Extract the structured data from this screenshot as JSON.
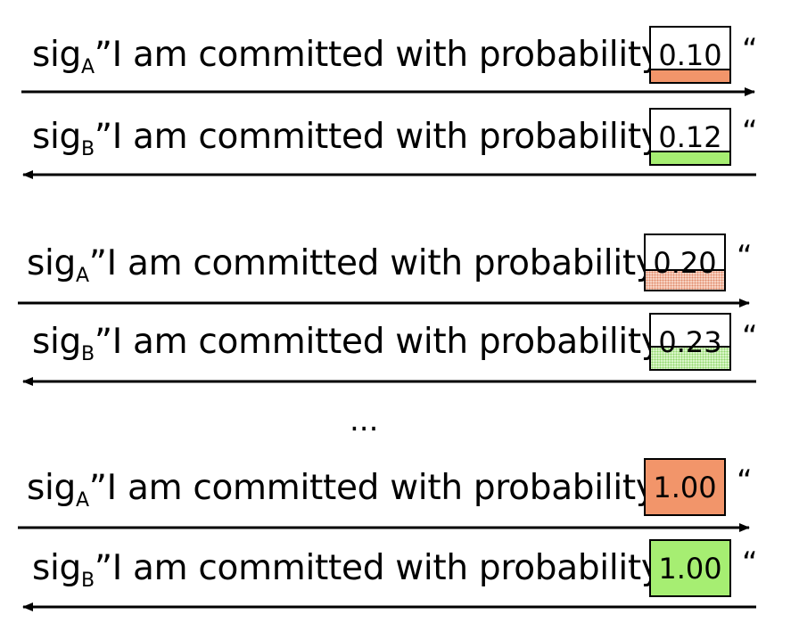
{
  "message_prefix": "sig",
  "message_text": "”I am committed with probability",
  "closing_quote": "“",
  "ellipsis": "...",
  "colors": {
    "party_a": "#f2956a",
    "party_b": "#a6ee72"
  },
  "messages": [
    {
      "party": "A",
      "value": "0.10",
      "fraction": 0.2,
      "direction": "right"
    },
    {
      "party": "B",
      "value": "0.12",
      "fraction": 0.2,
      "direction": "left"
    },
    {
      "party": "A",
      "value": "0.20",
      "fraction": 0.32,
      "direction": "right"
    },
    {
      "party": "B",
      "value": "0.23",
      "fraction": 0.36,
      "direction": "left"
    },
    {
      "party": "A",
      "value": "1.00",
      "fraction": 1.0,
      "direction": "right"
    },
    {
      "party": "B",
      "value": "1.00",
      "fraction": 1.0,
      "direction": "left"
    }
  ]
}
